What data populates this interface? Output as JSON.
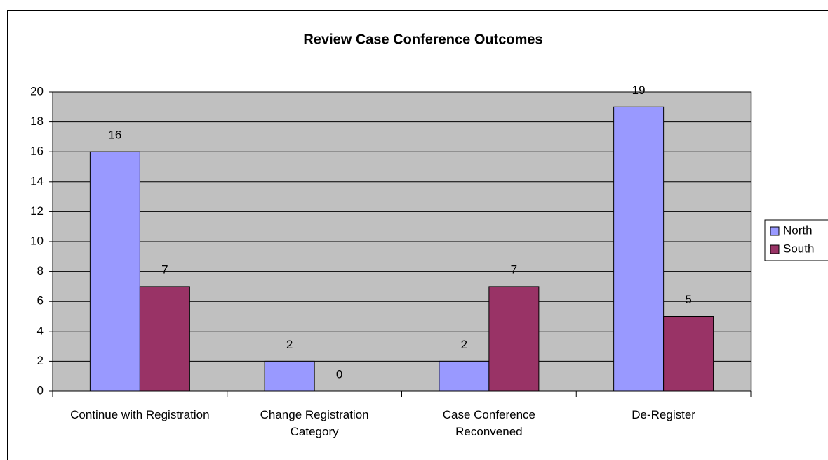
{
  "chart_data": {
    "type": "bar",
    "title": "Review Case Conference Outcomes",
    "categories": [
      "Continue with Registration",
      "Change Registration Category",
      "Case Conference Reconvened",
      "De-Register"
    ],
    "series": [
      {
        "name": "North",
        "color": "#9999ff",
        "values": [
          16,
          2,
          2,
          19
        ]
      },
      {
        "name": "South",
        "color": "#993366",
        "values": [
          7,
          0,
          7,
          5
        ]
      }
    ],
    "ylim": [
      0,
      20
    ],
    "yticks": [
      0,
      2,
      4,
      6,
      8,
      10,
      12,
      14,
      16,
      18,
      20
    ],
    "grid": true,
    "legend": "right",
    "plot_background": "#c0c0c0"
  }
}
